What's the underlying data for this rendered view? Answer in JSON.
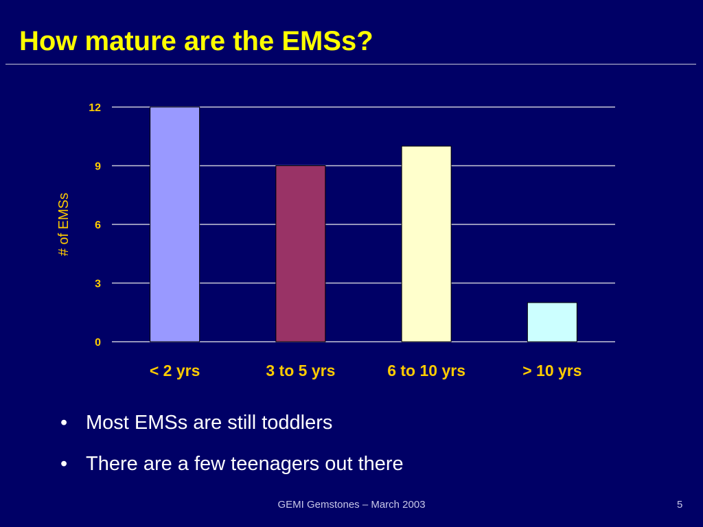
{
  "slide": {
    "title": "How mature are the EMSs?",
    "bullets": [
      "Most EMSs are still toddlers",
      "There are a few teenagers out there"
    ],
    "footer": "GEMI Gemstones – March 2003",
    "page_number": "5"
  },
  "colors": {
    "background": "#000066",
    "title": "#ffff00",
    "axis_text": "#ffcc00",
    "gridline": "#c8c8d8",
    "bars": [
      "#9999ff",
      "#993366",
      "#ffffcc",
      "#ccffff"
    ]
  },
  "chart_data": {
    "type": "bar",
    "categories": [
      "< 2 yrs",
      "3 to 5 yrs",
      "6 to 10 yrs",
      "> 10 yrs"
    ],
    "values": [
      12,
      9,
      10,
      2
    ],
    "ylabel": "# of EMSs",
    "xlabel": "",
    "ylim": [
      0,
      12
    ],
    "yticks": [
      0,
      3,
      6,
      9,
      12
    ],
    "grid": true,
    "legend": "none"
  }
}
